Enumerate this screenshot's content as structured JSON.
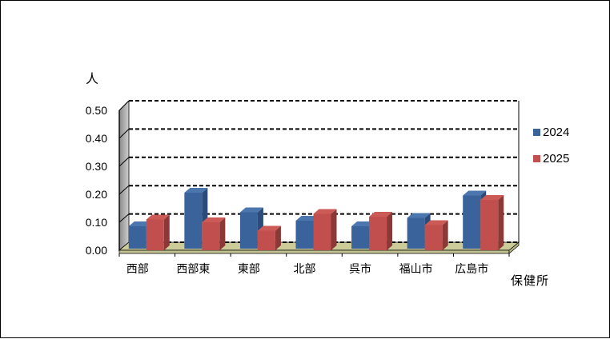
{
  "chart_data": {
    "type": "bar",
    "style": "3d-clustered-column",
    "title": "",
    "ylabel": "人",
    "xlabel": "保健所",
    "categories": [
      "西部",
      "西部東",
      "東部",
      "北部",
      "呉市",
      "福山市",
      "広島市"
    ],
    "series": [
      {
        "name": "2024",
        "color": "#3A639B",
        "side_color": "#2B4C7A",
        "top_color": "#4C76AE",
        "values": [
          0.08,
          0.2,
          0.13,
          0.1,
          0.08,
          0.11,
          0.19
        ]
      },
      {
        "name": "2025",
        "color": "#C04F4D",
        "side_color": "#8C3836",
        "top_color": "#CC5A57",
        "values": [
          0.11,
          0.1,
          0.07,
          0.13,
          0.12,
          0.09,
          0.18
        ]
      }
    ],
    "ylim": [
      0,
      0.5
    ],
    "ytick_step": 0.1,
    "ytick_labels": [
      "0.00",
      "0.10",
      "0.20",
      "0.30",
      "0.40",
      "0.50"
    ],
    "grid": "dashed-horizontal-black",
    "legend_position": "right",
    "legend_entries": [
      "2024",
      "2025"
    ],
    "colors": {
      "background": "#FFFFFF",
      "plot_back_wall": "#FFFFFF",
      "floor": "#CCCC99",
      "floor_front": "#C2C292",
      "floor_bevel": "#B5B586",
      "wall_gradient_dark": "#8A8A8A",
      "wall_gradient_light": "#CFCFCF",
      "gridline": "#000000",
      "text": "#000000"
    }
  }
}
